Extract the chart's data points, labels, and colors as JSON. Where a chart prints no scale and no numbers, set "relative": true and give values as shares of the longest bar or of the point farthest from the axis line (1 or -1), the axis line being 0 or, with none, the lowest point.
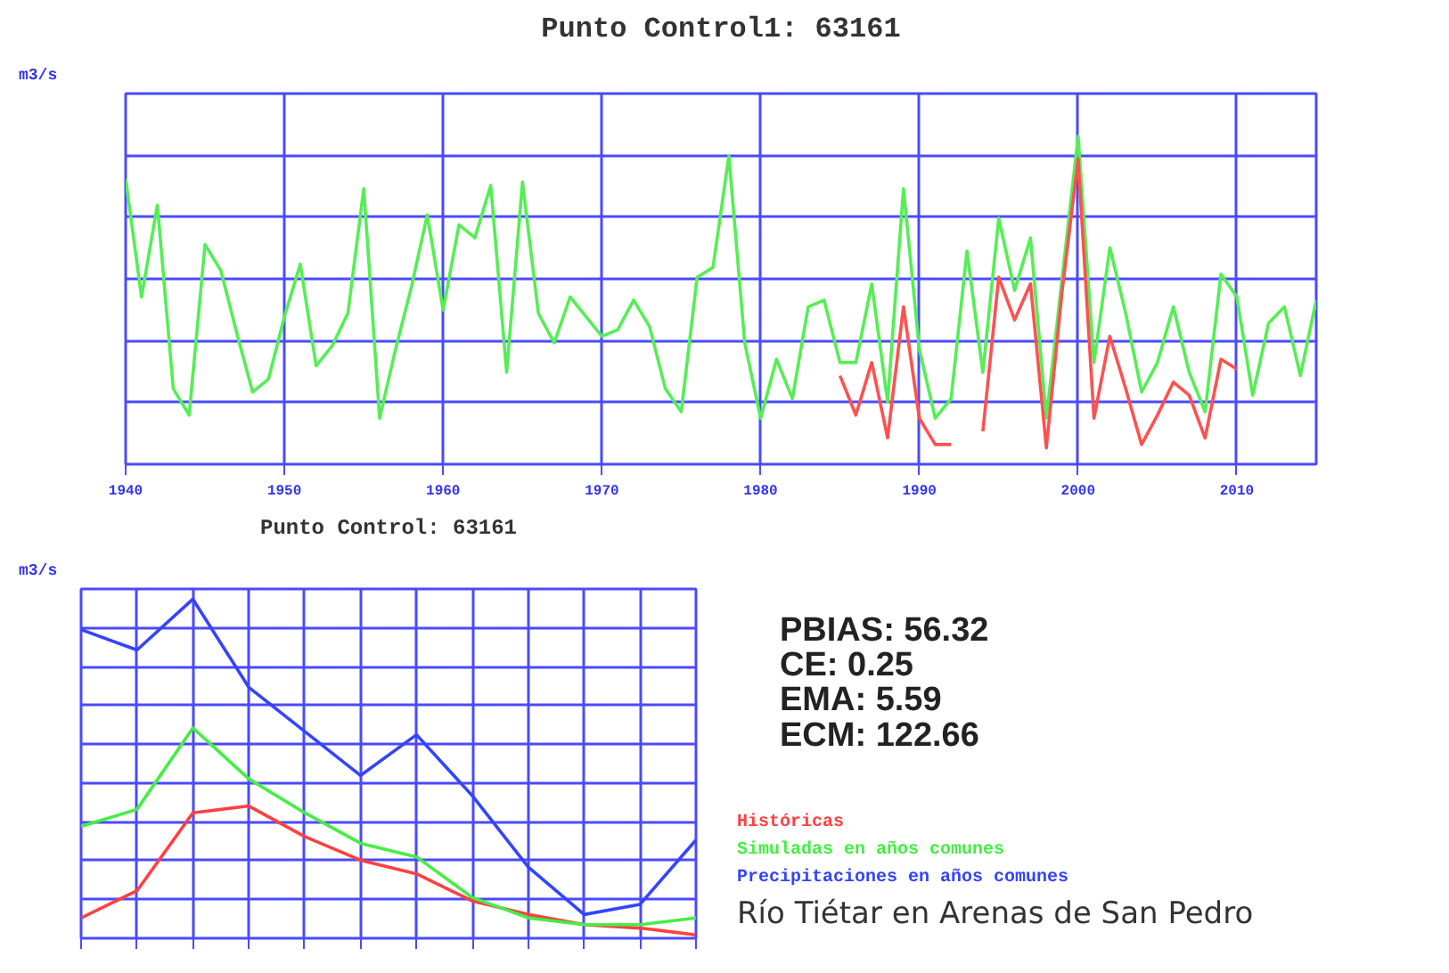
{
  "chart_data": [
    {
      "type": "line",
      "title": "Punto Control1: 63161",
      "ylabel": "m3/s",
      "relative": true,
      "grid": true,
      "tick_labels": "x",
      "x": [
        1940,
        1941,
        1942,
        1943,
        1944,
        1945,
        1946,
        1947,
        1948,
        1949,
        1950,
        1951,
        1952,
        1953,
        1954,
        1955,
        1956,
        1957,
        1958,
        1959,
        1960,
        1961,
        1962,
        1963,
        1964,
        1965,
        1966,
        1967,
        1968,
        1969,
        1970,
        1971,
        1972,
        1973,
        1974,
        1975,
        1976,
        1977,
        1978,
        1979,
        1980,
        1981,
        1982,
        1983,
        1984,
        1985,
        1986,
        1987,
        1988,
        1989,
        1990,
        1991,
        1992,
        1993,
        1994,
        1995,
        1996,
        1997,
        1998,
        1999,
        2000,
        2001,
        2002,
        2003,
        2004,
        2005,
        2006,
        2007,
        2008,
        2009,
        2010,
        2011,
        2012,
        2013,
        2014,
        2015
      ],
      "xlim": [
        1940,
        2015
      ],
      "xticks": [
        1940,
        1950,
        1960,
        1970,
        1980,
        1990,
        2000,
        2010
      ],
      "series": [
        {
          "color": "#55ee55",
          "values": [
            0.87,
            0.51,
            0.79,
            0.23,
            0.15,
            0.67,
            0.59,
            0.4,
            0.22,
            0.26,
            0.45,
            0.61,
            0.3,
            0.36,
            0.46,
            0.84,
            0.14,
            0.35,
            0.54,
            0.76,
            0.47,
            0.73,
            0.69,
            0.85,
            0.28,
            0.86,
            0.46,
            0.37,
            0.51,
            0.45,
            0.39,
            0.41,
            0.5,
            0.42,
            0.23,
            0.16,
            0.57,
            0.6,
            0.94,
            0.37,
            0.14,
            0.32,
            0.2,
            0.48,
            0.5,
            0.31,
            0.31,
            0.55,
            0.19,
            0.84,
            0.35,
            0.14,
            0.2,
            0.65,
            0.28,
            0.75,
            0.53,
            0.69,
            0.14,
            0.57,
            1.0,
            0.31,
            0.66,
            0.46,
            0.22,
            0.31,
            0.48,
            0.28,
            0.16,
            0.58,
            0.51,
            0.21,
            0.43,
            0.48,
            0.27,
            0.5
          ]
        },
        {
          "color": "#ff5050",
          "x": [
            1985,
            1986,
            1987,
            1988,
            1989,
            1990,
            1991,
            1992,
            1993,
            1994,
            1995,
            1996,
            1997,
            1998,
            1999,
            2000,
            2001,
            2002,
            2003,
            2004,
            2005,
            2006,
            2007,
            2008,
            2009,
            2010
          ],
          "values": [
            0.27,
            0.15,
            0.31,
            0.08,
            0.48,
            0.14,
            0.06,
            0.06,
            null,
            0.1,
            0.57,
            0.44,
            0.55,
            0.05,
            0.53,
            0.93,
            0.14,
            0.39,
            0.23,
            0.06,
            0.15,
            0.25,
            0.21,
            0.08,
            0.32,
            0.29
          ]
        }
      ]
    },
    {
      "type": "line",
      "title": "Punto Control: 63161",
      "ylabel": "m3/s",
      "relative": true,
      "grid": true,
      "categories": [
        null,
        null,
        null,
        null,
        null,
        null,
        null,
        null,
        null,
        null,
        null,
        null
      ],
      "series": [
        {
          "name": "Históricas",
          "color": "#ff4040",
          "values": [
            0.06,
            0.14,
            0.37,
            0.39,
            0.3,
            0.23,
            0.19,
            0.11,
            0.07,
            0.04,
            0.03,
            0.01
          ]
        },
        {
          "name": "Simuladas en años comunes",
          "color": "#44ee44",
          "values": [
            0.33,
            0.38,
            0.62,
            0.47,
            0.37,
            0.28,
            0.24,
            0.12,
            0.06,
            0.04,
            0.04,
            0.06
          ]
        },
        {
          "name": "Precipitaciones en años comunes",
          "color": "#3344ff",
          "values": [
            0.91,
            0.85,
            1.0,
            0.74,
            0.61,
            0.48,
            0.6,
            0.42,
            0.21,
            0.07,
            0.1,
            0.29
          ]
        }
      ]
    },
    {
      "type": "other",
      "annotations": [
        "PBIAS: 56.32",
        "CE: 0.25",
        "EMA: 5.59",
        "ECM: 122.66",
        "Río Tiétar en Arenas de San Pedro"
      ]
    }
  ]
}
